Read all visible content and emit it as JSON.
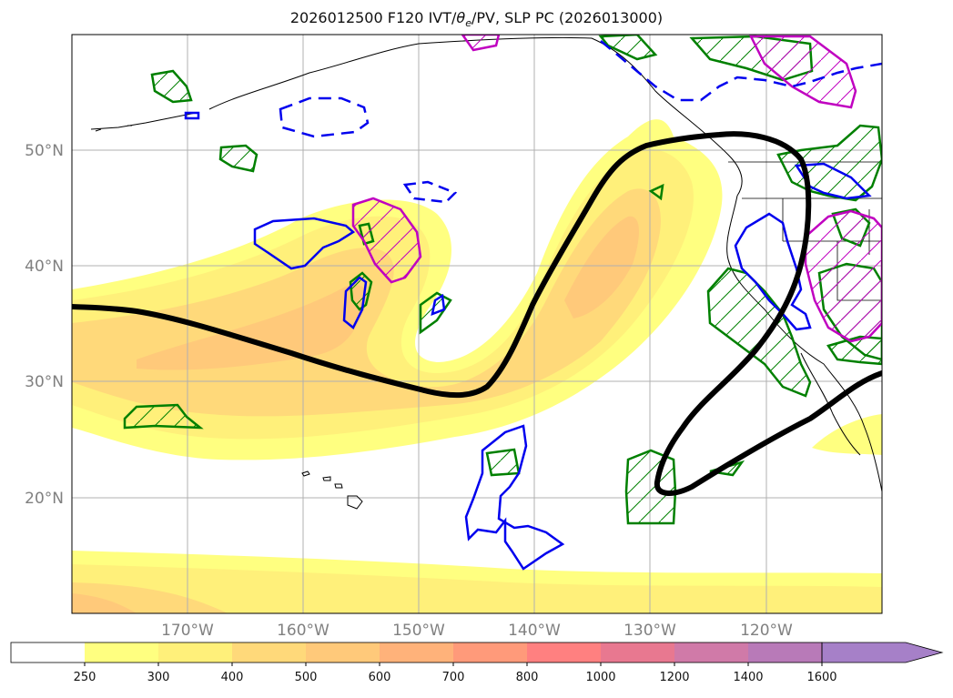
{
  "title": "2026012500 F120 IVT/θe/PV, SLP PC (2026013000)",
  "title_parts": {
    "prefix": "2026012500 F120 IVT/",
    "theta": "θ",
    "theta_sub": "e",
    "suffix": "/PV, SLP PC (2026013000)"
  },
  "axes": {
    "lat_labels": [
      "50°N",
      "40°N",
      "30°N",
      "20°N"
    ],
    "lon_labels": [
      "170°W",
      "160°W",
      "150°W",
      "140°W",
      "130°W",
      "120°W"
    ]
  },
  "colorbar": {
    "labels": [
      "250",
      "300",
      "400",
      "500",
      "600",
      "700",
      "800",
      "1000",
      "1200",
      "1400",
      "1600"
    ],
    "colors": [
      "#ffffff",
      "#ffff80",
      "#fff07a",
      "#ffd97a",
      "#ffc97a",
      "#ffb27a",
      "#ff9a7a",
      "#ff8080",
      "#e87890",
      "#d07aa8",
      "#b87ab8",
      "#a680c8"
    ]
  },
  "colors": {
    "contour_blue": "#0000ee",
    "contour_green": "#008000",
    "contour_magenta": "#c000c0",
    "slp_line": "#000000",
    "grid": "#b0b0b0",
    "axis_label": "#808080"
  }
}
